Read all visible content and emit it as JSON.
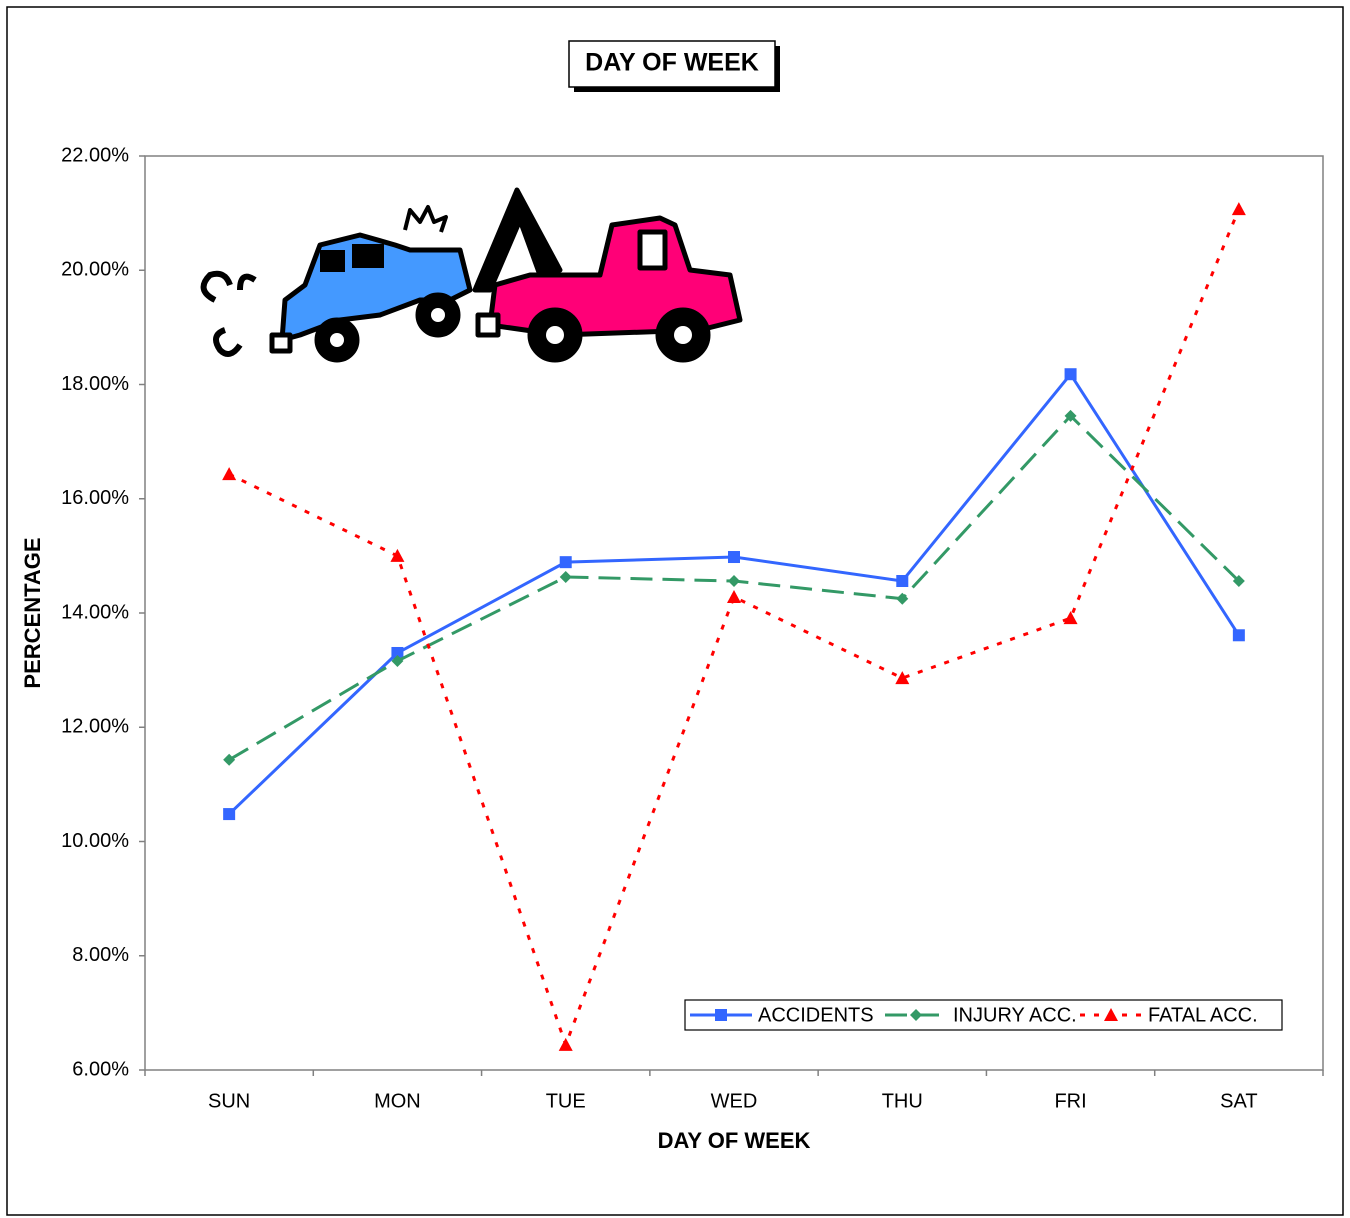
{
  "chart_data": {
    "type": "line",
    "title": "DAY OF WEEK",
    "x_label": "DAY OF WEEK",
    "y_label": "PERCENTAGE",
    "categories": [
      "SUN",
      "MON",
      "TUE",
      "WED",
      "THU",
      "FRI",
      "SAT"
    ],
    "series": [
      {
        "name": "ACCIDENTS",
        "color": "#3366ff",
        "marker": "square",
        "dash": "solid",
        "values": [
          10.48,
          13.3,
          14.89,
          14.98,
          14.56,
          18.18,
          13.61
        ]
      },
      {
        "name": "INJURY ACC.",
        "color": "#339966",
        "marker": "diamond",
        "dash": "long",
        "values": [
          11.43,
          13.16,
          14.63,
          14.56,
          14.25,
          17.45,
          14.56
        ]
      },
      {
        "name": "FATAL ACC.",
        "color": "#ff0000",
        "marker": "triangle",
        "dash": "dot",
        "values": [
          16.43,
          15.0,
          6.44,
          14.28,
          12.86,
          13.91,
          21.07
        ]
      }
    ],
    "ylim": [
      6,
      22
    ],
    "yticks": [
      {
        "value": 6,
        "label": "6.00%"
      },
      {
        "value": 8,
        "label": "8.00%"
      },
      {
        "value": 10,
        "label": "10.00%"
      },
      {
        "value": 12,
        "label": "12.00%"
      },
      {
        "value": 14,
        "label": "14.00%"
      },
      {
        "value": 16,
        "label": "16.00%"
      },
      {
        "value": 18,
        "label": "18.00%"
      },
      {
        "value": 20,
        "label": "20.00%"
      },
      {
        "value": 22,
        "label": "22.00%"
      }
    ],
    "grid": false,
    "legend": "bottom-right"
  }
}
